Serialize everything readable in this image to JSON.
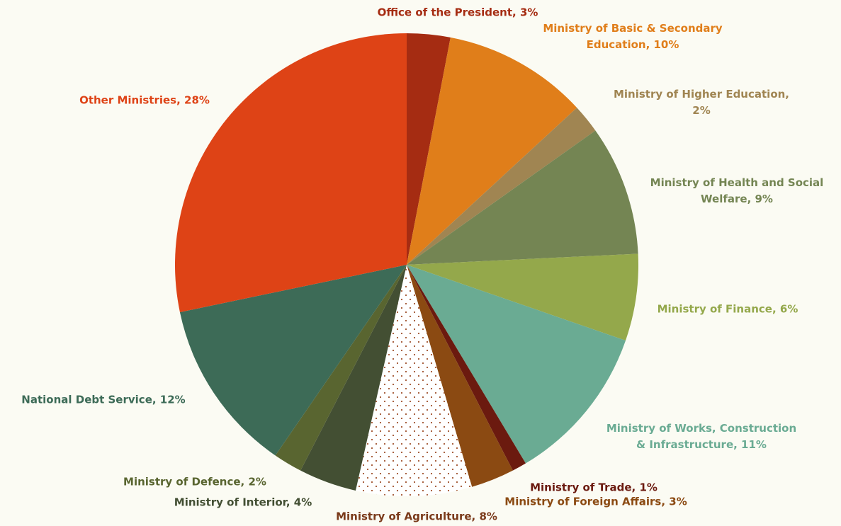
{
  "chart_data": {
    "type": "pie",
    "categories": [
      "Office of the President, 3%",
      "Ministry of Basic & Secondary Education, 10%",
      "Ministry of Higher Education, 2%",
      "Ministry of Health and Social Welfare, 9%",
      "Ministry of Finance, 6%",
      "Ministry of Works, Construction & Infrastructure, 11%",
      "Ministry of Trade, 1%",
      "Ministry of Foreign Affairs, 3%",
      "Ministry of Agriculture, 8%",
      "Ministry of Interior, 4%",
      "Ministry of Defence, 2%",
      "National Debt Service, 12%",
      "Other Ministries, 28%"
    ],
    "values": [
      3,
      10,
      2,
      9,
      6,
      11,
      1,
      3,
      8,
      4,
      2,
      12,
      28
    ],
    "colors": [
      "#a52c12",
      "#e07e1a",
      "#a08552",
      "#748553",
      "#94a84b",
      "#6aab93",
      "#6b1a0f",
      "#8b4a12",
      "#ffffff",
      "#434f33",
      "#596530",
      "#3d6b57",
      "#de4316"
    ],
    "patterns": [
      null,
      null,
      null,
      null,
      null,
      null,
      null,
      null,
      "dots",
      null,
      null,
      null,
      null
    ],
    "label_colors": [
      "#a52c12",
      "#e07e1a",
      "#a08552",
      "#748553",
      "#94a84b",
      "#6aab93",
      "#6b1a0f",
      "#8b4a12",
      "#7a3a1a",
      "#434f33",
      "#596530",
      "#3d6b57",
      "#de4316"
    ]
  }
}
